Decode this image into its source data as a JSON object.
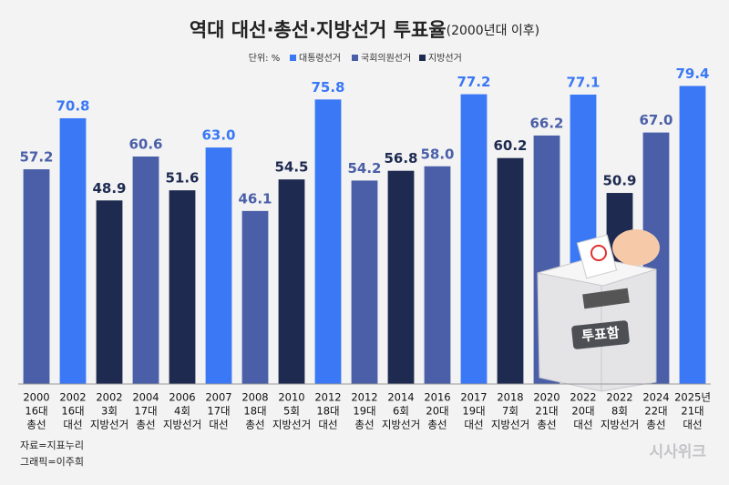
{
  "chart_data": {
    "type": "bar",
    "title": "역대 대선·총선·지방선거 투표율",
    "subtitle": "(2000년대 이후)",
    "unit_label": "단위: %",
    "categories": [
      [
        "2000",
        "16대",
        "총선"
      ],
      [
        "2002",
        "16대",
        "대선"
      ],
      [
        "2002",
        "3회",
        "지방선거"
      ],
      [
        "2004",
        "17대",
        "총선"
      ],
      [
        "2006",
        "4회",
        "지방선거"
      ],
      [
        "2007",
        "17대",
        "대선"
      ],
      [
        "2008",
        "18대",
        "총선"
      ],
      [
        "2010",
        "5회",
        "지방선거"
      ],
      [
        "2012",
        "18대",
        "대선"
      ],
      [
        "2012",
        "19대",
        "총선"
      ],
      [
        "2014",
        "6회",
        "지방선거"
      ],
      [
        "2016",
        "20대",
        "총선"
      ],
      [
        "2017",
        "19대",
        "대선"
      ],
      [
        "2018",
        "7회",
        "지방선거"
      ],
      [
        "2020",
        "21대",
        "총선"
      ],
      [
        "2022",
        "20대",
        "대선"
      ],
      [
        "2022",
        "8회",
        "지방선거"
      ],
      [
        "2024",
        "22대",
        "총선"
      ],
      [
        "2025년",
        "21대",
        "대선"
      ]
    ],
    "series": [
      {
        "name": "대통령선거",
        "color": "#3a78f5",
        "values": [
          null,
          70.8,
          null,
          null,
          null,
          63.0,
          null,
          null,
          75.8,
          null,
          null,
          null,
          77.2,
          null,
          null,
          77.1,
          null,
          null,
          79.4
        ],
        "value_labels": [
          null,
          null,
          null,
          null,
          null,
          "63.0",
          null,
          null,
          null,
          null,
          null,
          null,
          null,
          null,
          null,
          null,
          null,
          null,
          null
        ]
      },
      {
        "name": "국회의원선거",
        "color": "#4a5fa8",
        "values": [
          57.2,
          null,
          null,
          60.6,
          null,
          null,
          46.1,
          null,
          null,
          54.2,
          null,
          58.0,
          null,
          null,
          66.2,
          null,
          null,
          67.0,
          null
        ],
        "value_labels": [
          null,
          null,
          null,
          null,
          null,
          null,
          null,
          null,
          null,
          null,
          null,
          "58.0",
          null,
          null,
          null,
          null,
          null,
          "67.0",
          null
        ]
      },
      {
        "name": "지방선거",
        "color": "#1e2a50",
        "values": [
          null,
          null,
          48.9,
          null,
          51.6,
          null,
          null,
          54.5,
          null,
          null,
          56.8,
          null,
          null,
          60.2,
          null,
          null,
          50.9,
          null,
          null
        ],
        "value_labels": [
          null,
          null,
          null,
          null,
          null,
          null,
          null,
          null,
          null,
          null,
          null,
          null,
          null,
          null,
          null,
          null,
          null,
          null,
          null
        ]
      }
    ],
    "ylim": [
      0,
      80
    ],
    "source": "자료=지표누리",
    "credit": "그래픽=이주희",
    "illustration_label": "투표함",
    "watermark": "시사위크"
  }
}
